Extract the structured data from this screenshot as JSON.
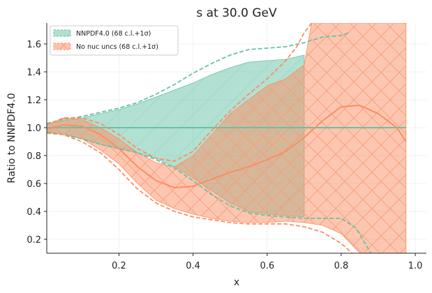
{
  "chart_data": {
    "type": "line",
    "title": "s at 30.0 GeV",
    "xlabel": "x",
    "ylabel": "Ratio to NNPDF4.0",
    "xlim": [
      0.005,
      1.03
    ],
    "ylim": [
      0.1,
      1.75
    ],
    "xticks": [
      "0.2",
      "0.4",
      "0.6",
      "0.8",
      "1.0"
    ],
    "yticks": [
      "0.2",
      "0.4",
      "0.6",
      "0.8",
      "1.0",
      "1.2",
      "1.4",
      "1.6"
    ],
    "xtick_values": [
      0.2,
      0.4,
      0.6,
      0.8,
      1.0
    ],
    "ytick_values": [
      0.2,
      0.4,
      0.6,
      0.8,
      1.0,
      1.2,
      1.4,
      1.6
    ],
    "grid": true,
    "legend_position": "top-left",
    "series": [
      {
        "name": "NNPDF4.0 (68 c.l.+1σ)",
        "color": "#66c2a5",
        "central": {
          "x": [
            0.005,
            0.1,
            0.2,
            0.3,
            0.4,
            0.5,
            0.6,
            0.7,
            0.8,
            0.9,
            0.975
          ],
          "y": [
            1.0,
            1.0,
            1.0,
            1.0,
            1.0,
            1.0,
            1.0,
            1.0,
            1.0,
            1.0,
            1.0
          ]
        },
        "band_upper": {
          "x": [
            0.005,
            0.05,
            0.1,
            0.15,
            0.2,
            0.25,
            0.3,
            0.35,
            0.4,
            0.45,
            0.5,
            0.55,
            0.6,
            0.65,
            0.7
          ],
          "y": [
            1.03,
            1.05,
            1.07,
            1.1,
            1.13,
            1.17,
            1.22,
            1.27,
            1.32,
            1.38,
            1.43,
            1.47,
            1.48,
            1.49,
            1.52
          ]
        },
        "band_lower": {
          "x": [
            0.005,
            0.05,
            0.1,
            0.15,
            0.2,
            0.25,
            0.3,
            0.35,
            0.4,
            0.45,
            0.5,
            0.55,
            0.6,
            0.65,
            0.7
          ],
          "y": [
            0.97,
            0.95,
            0.92,
            0.88,
            0.85,
            0.82,
            0.78,
            0.72,
            0.64,
            0.55,
            0.46,
            0.4,
            0.38,
            0.37,
            0.36
          ]
        },
        "dashed_upper": {
          "x": [
            0.005,
            0.05,
            0.1,
            0.15,
            0.2,
            0.25,
            0.3,
            0.35,
            0.4,
            0.45,
            0.5,
            0.55,
            0.6,
            0.65,
            0.7,
            0.75,
            0.8,
            0.82
          ],
          "y": [
            1.03,
            1.06,
            1.08,
            1.11,
            1.14,
            1.18,
            1.24,
            1.31,
            1.39,
            1.46,
            1.52,
            1.56,
            1.57,
            1.58,
            1.61,
            1.65,
            1.66,
            1.68
          ]
        },
        "dashed_lower": {
          "x": [
            0.005,
            0.05,
            0.1,
            0.15,
            0.2,
            0.25,
            0.3,
            0.35,
            0.4,
            0.45,
            0.5,
            0.55,
            0.6,
            0.65,
            0.7,
            0.75,
            0.8,
            0.84,
            0.88,
            0.9
          ],
          "y": [
            0.97,
            0.95,
            0.92,
            0.88,
            0.85,
            0.82,
            0.77,
            0.71,
            0.62,
            0.52,
            0.44,
            0.39,
            0.37,
            0.36,
            0.35,
            0.35,
            0.35,
            0.28,
            0.1,
            0.05
          ]
        }
      },
      {
        "name": "No nuc uncs (68 c.l.+1σ)",
        "color": "#fc8d62",
        "central": {
          "x": [
            0.005,
            0.05,
            0.1,
            0.15,
            0.2,
            0.25,
            0.3,
            0.35,
            0.4,
            0.45,
            0.5,
            0.55,
            0.6,
            0.65,
            0.7,
            0.75,
            0.8,
            0.85,
            0.9,
            0.95,
            0.975
          ],
          "y": [
            0.99,
            1.02,
            1.01,
            0.95,
            0.85,
            0.72,
            0.62,
            0.57,
            0.58,
            0.63,
            0.68,
            0.72,
            0.77,
            0.83,
            0.93,
            1.05,
            1.15,
            1.16,
            1.1,
            1.0,
            0.9
          ]
        },
        "band_upper": {
          "x": [
            0.005,
            0.05,
            0.1,
            0.15,
            0.2,
            0.25,
            0.3,
            0.35,
            0.4,
            0.45,
            0.5,
            0.55,
            0.6,
            0.65,
            0.7,
            0.72,
            0.76,
            0.8,
            0.84,
            0.88,
            0.92,
            0.95,
            0.975
          ],
          "y": [
            1.02,
            1.07,
            1.06,
            1.0,
            0.92,
            0.82,
            0.75,
            0.72,
            0.8,
            0.95,
            1.1,
            1.2,
            1.3,
            1.35,
            1.45,
            1.75,
            1.75,
            1.75,
            1.75,
            1.75,
            1.75,
            1.75,
            1.75
          ]
        },
        "band_lower": {
          "x": [
            0.005,
            0.05,
            0.1,
            0.15,
            0.2,
            0.25,
            0.3,
            0.35,
            0.4,
            0.45,
            0.5,
            0.55,
            0.6,
            0.65,
            0.7,
            0.75,
            0.8,
            0.85,
            0.88,
            0.9,
            0.975
          ],
          "y": [
            0.96,
            0.96,
            0.92,
            0.84,
            0.74,
            0.6,
            0.48,
            0.42,
            0.38,
            0.35,
            0.33,
            0.32,
            0.32,
            0.33,
            0.32,
            0.3,
            0.24,
            0.1,
            0.1,
            0.1,
            0.1
          ]
        },
        "dashed_upper": {
          "x": [
            0.005,
            0.05,
            0.1,
            0.15,
            0.2,
            0.25,
            0.3,
            0.35,
            0.4,
            0.45,
            0.5,
            0.55,
            0.6,
            0.65,
            0.68,
            0.7,
            0.72
          ],
          "y": [
            1.02,
            1.07,
            1.07,
            1.03,
            0.95,
            0.85,
            0.78,
            0.76,
            0.83,
            0.98,
            1.12,
            1.24,
            1.35,
            1.48,
            1.58,
            1.68,
            1.75
          ]
        },
        "dashed_lower": {
          "x": [
            0.005,
            0.05,
            0.1,
            0.15,
            0.2,
            0.25,
            0.3,
            0.35,
            0.4,
            0.45,
            0.5,
            0.55,
            0.6,
            0.65,
            0.7,
            0.75,
            0.8,
            0.83
          ],
          "y": [
            0.96,
            0.95,
            0.9,
            0.82,
            0.7,
            0.56,
            0.46,
            0.4,
            0.36,
            0.34,
            0.32,
            0.31,
            0.31,
            0.31,
            0.29,
            0.25,
            0.17,
            0.1
          ]
        }
      }
    ]
  }
}
